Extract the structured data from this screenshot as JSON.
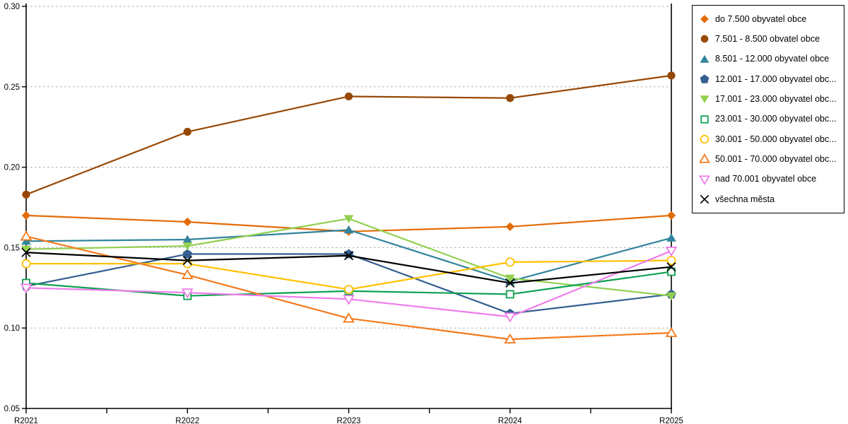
{
  "page": {
    "background": "#ffffff"
  },
  "chart_data": {
    "type": "line",
    "title": "",
    "xlabel": "",
    "ylabel": "",
    "categories": [
      "R2021",
      "R2022",
      "R2023",
      "R2024",
      "R2025"
    ],
    "y_ticks": [
      "0.30",
      "0.25",
      "0.20",
      "0.15",
      "0.10",
      "0.05"
    ],
    "ylim": [
      0.05,
      0.3
    ],
    "grid": {
      "horizontal": true,
      "style": "dotted",
      "color": "#b8b8b8"
    },
    "axis_color": "#000000",
    "x_minor_ticks_between_categories": true,
    "legend_position": "right",
    "series": [
      {
        "name": "do 7.500 obyvatel obce",
        "color": "#e36c0a",
        "marker": "diamond",
        "fill": "filled",
        "values": [
          0.17,
          0.166,
          0.16,
          0.163,
          0.17
        ]
      },
      {
        "name": "7.501 - 8.500 obvatel obce",
        "color": "#974806",
        "marker": "circle",
        "fill": "filled",
        "values": [
          0.183,
          0.222,
          0.244,
          0.243,
          0.257
        ]
      },
      {
        "name": "8.501 - 12.000 obyvatel obce",
        "color": "#31849b",
        "marker": "triangle-up",
        "fill": "filled",
        "values": [
          0.154,
          0.155,
          0.161,
          0.129,
          0.156
        ]
      },
      {
        "name": "12.001 - 17.000 obyvatel obc...",
        "color": "#355f91",
        "marker": "pentagon",
        "fill": "filled",
        "values": [
          0.126,
          0.146,
          0.146,
          0.109,
          0.121
        ]
      },
      {
        "name": "17.001 - 23.000 obyvatel obc...",
        "color": "#92d050",
        "marker": "triangle-down",
        "fill": "filled",
        "values": [
          0.149,
          0.151,
          0.168,
          0.131,
          0.12
        ]
      },
      {
        "name": "23.001 - 30.000 obyvatel obc...",
        "color": "#0ea152",
        "marker": "square",
        "fill": "hollow",
        "values": [
          0.128,
          0.12,
          0.123,
          0.121,
          0.135
        ]
      },
      {
        "name": "30.001 - 50.000 obyvatel obc...",
        "color": "#ffc000",
        "marker": "circle",
        "fill": "hollow",
        "values": [
          0.14,
          0.14,
          0.124,
          0.141,
          0.142
        ]
      },
      {
        "name": "50.001 - 70.000 obyvatel obc...",
        "color": "#f4791b",
        "marker": "triangle-up",
        "fill": "hollow",
        "values": [
          0.157,
          0.133,
          0.106,
          0.093,
          0.097
        ]
      },
      {
        "name": "nad 70.001 obyvatel obce",
        "color": "#ee7deb",
        "marker": "triangle-down",
        "fill": "hollow",
        "values": [
          0.125,
          0.122,
          0.118,
          0.107,
          0.148
        ]
      },
      {
        "name": "všechna města",
        "color": "#000000",
        "marker": "x",
        "fill": "filled",
        "values": [
          0.147,
          0.142,
          0.145,
          0.128,
          0.138
        ]
      }
    ]
  }
}
